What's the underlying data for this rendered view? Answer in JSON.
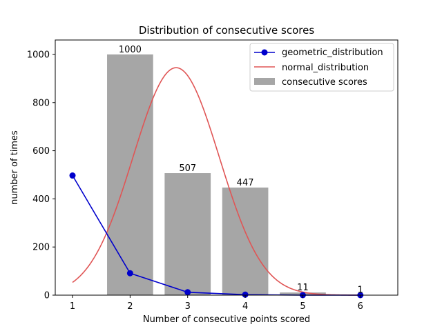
{
  "chart_data": {
    "type": "bar",
    "title": "Distribution of consecutive scores",
    "xlabel": "Number of consecutive points scored",
    "ylabel": "number of times",
    "xlim": [
      0.7,
      6.65
    ],
    "ylim": [
      0,
      1060
    ],
    "xticks": [
      1,
      2,
      3,
      4,
      5,
      6
    ],
    "yticks": [
      0,
      200,
      400,
      600,
      800,
      1000
    ],
    "grid": false,
    "legend_position": "top-right",
    "bars": {
      "name": "consecutive scores",
      "color": "#a6a6a6",
      "x": [
        2,
        3,
        4,
        5,
        6
      ],
      "values": [
        1000,
        507,
        447,
        11,
        1
      ],
      "labels": [
        "1000",
        "507",
        "447",
        "11",
        "1"
      ]
    },
    "geometric_distribution": {
      "name": "geometric_distribution",
      "color": "#0000cc",
      "x": [
        1,
        2,
        3,
        4,
        5,
        6
      ],
      "y": [
        497,
        91,
        12,
        2,
        0,
        0
      ]
    },
    "normal_distribution": {
      "name": "normal_distribution",
      "color": "#e05555",
      "mean": 2.8,
      "std": 0.75,
      "peak": 945,
      "x_range": [
        1,
        6
      ]
    }
  }
}
